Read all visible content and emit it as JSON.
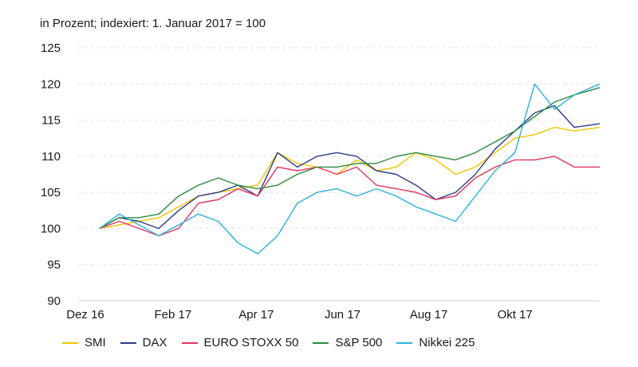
{
  "chart_data": {
    "type": "line",
    "subtitle": "in Prozent; indexiert: 1. Januar 2017 = 100",
    "ylim": [
      90,
      125
    ],
    "yticks": [
      90,
      95,
      100,
      105,
      110,
      115,
      120,
      125
    ],
    "xlim": [
      "2016-12-01",
      "2017-11-30"
    ],
    "xticks": [
      {
        "label": "Dez 16",
        "date": "2016-12-01"
      },
      {
        "label": "Feb 17",
        "date": "2017-02-01"
      },
      {
        "label": "Apr 17",
        "date": "2017-04-01"
      },
      {
        "label": "Jun 17",
        "date": "2017-06-01"
      },
      {
        "label": "Aug 17",
        "date": "2017-08-01"
      },
      {
        "label": "Okt 17",
        "date": "2017-10-01"
      }
    ],
    "grid": true,
    "legend_position": "bottom",
    "series": [
      {
        "name": "SMI",
        "color": "#f2c500",
        "x": [
          "2016-12-11",
          "2016-12-25",
          "2017-01-08",
          "2017-01-22",
          "2017-02-05",
          "2017-02-19",
          "2017-03-05",
          "2017-03-19",
          "2017-04-02",
          "2017-04-16",
          "2017-04-30",
          "2017-05-14",
          "2017-05-28",
          "2017-06-11",
          "2017-06-25",
          "2017-07-09",
          "2017-07-23",
          "2017-08-06",
          "2017-08-20",
          "2017-09-03",
          "2017-09-17",
          "2017-10-01",
          "2017-10-15",
          "2017-10-29",
          "2017-11-12",
          "2017-11-30"
        ],
        "values": [
          100,
          100.5,
          101,
          101.5,
          103,
          104.5,
          105,
          105.5,
          106,
          110.5,
          109,
          108.5,
          107.5,
          109.5,
          108,
          108.5,
          110.5,
          109.5,
          107.5,
          108.5,
          110.5,
          112.5,
          113,
          114,
          113.5,
          114
        ]
      },
      {
        "name": "DAX",
        "color": "#2d3b8c",
        "x": [
          "2016-12-11",
          "2016-12-25",
          "2017-01-08",
          "2017-01-22",
          "2017-02-05",
          "2017-02-19",
          "2017-03-05",
          "2017-03-19",
          "2017-04-02",
          "2017-04-16",
          "2017-04-30",
          "2017-05-14",
          "2017-05-28",
          "2017-06-11",
          "2017-06-25",
          "2017-07-09",
          "2017-07-23",
          "2017-08-06",
          "2017-08-20",
          "2017-09-03",
          "2017-09-17",
          "2017-10-01",
          "2017-10-15",
          "2017-10-29",
          "2017-11-12",
          "2017-11-30"
        ],
        "values": [
          100,
          101.5,
          101,
          100,
          102.5,
          104.5,
          105,
          106,
          104.5,
          110.5,
          108.5,
          110,
          110.5,
          110,
          108,
          107.5,
          106,
          104,
          105,
          107.5,
          111,
          113.5,
          116,
          117,
          114,
          114.5
        ]
      },
      {
        "name": "EURO STOXX 50",
        "color": "#e2335f",
        "x": [
          "2016-12-11",
          "2016-12-25",
          "2017-01-08",
          "2017-01-22",
          "2017-02-05",
          "2017-02-19",
          "2017-03-05",
          "2017-03-19",
          "2017-04-02",
          "2017-04-16",
          "2017-04-30",
          "2017-05-14",
          "2017-05-28",
          "2017-06-11",
          "2017-06-25",
          "2017-07-09",
          "2017-07-23",
          "2017-08-06",
          "2017-08-20",
          "2017-09-03",
          "2017-09-17",
          "2017-10-01",
          "2017-10-15",
          "2017-10-29",
          "2017-11-12",
          "2017-11-30"
        ],
        "values": [
          100,
          101,
          100,
          99,
          100,
          103.5,
          104,
          105.5,
          104.5,
          108.5,
          108,
          108.5,
          107.5,
          108.5,
          106,
          105.5,
          105,
          104,
          104.5,
          107,
          108.5,
          109.5,
          109.5,
          110,
          108.5,
          108.5
        ]
      },
      {
        "name": "S&P 500",
        "color": "#2e8b3e",
        "x": [
          "2016-12-11",
          "2016-12-25",
          "2017-01-08",
          "2017-01-22",
          "2017-02-05",
          "2017-02-19",
          "2017-03-05",
          "2017-03-19",
          "2017-04-02",
          "2017-04-16",
          "2017-04-30",
          "2017-05-14",
          "2017-05-28",
          "2017-06-11",
          "2017-06-25",
          "2017-07-09",
          "2017-07-23",
          "2017-08-06",
          "2017-08-20",
          "2017-09-03",
          "2017-09-17",
          "2017-10-01",
          "2017-10-15",
          "2017-10-29",
          "2017-11-12",
          "2017-11-30"
        ],
        "values": [
          100,
          101.5,
          101.5,
          102,
          104.5,
          106,
          107,
          106,
          105.5,
          106,
          107.5,
          108.5,
          108.5,
          109,
          109,
          110,
          110.5,
          110,
          109.5,
          110.5,
          112,
          113.5,
          115.5,
          117.5,
          118.5,
          119.5
        ]
      },
      {
        "name": "Nikkei 225",
        "color": "#2cb1de",
        "x": [
          "2016-12-11",
          "2016-12-25",
          "2017-01-08",
          "2017-01-22",
          "2017-02-05",
          "2017-02-19",
          "2017-03-05",
          "2017-03-19",
          "2017-04-02",
          "2017-04-16",
          "2017-04-30",
          "2017-05-14",
          "2017-05-28",
          "2017-06-11",
          "2017-06-25",
          "2017-07-09",
          "2017-07-23",
          "2017-08-06",
          "2017-08-20",
          "2017-09-03",
          "2017-09-17",
          "2017-10-01",
          "2017-10-15",
          "2017-10-29",
          "2017-11-12",
          "2017-11-30"
        ],
        "values": [
          100,
          102,
          100.5,
          99,
          100.5,
          102,
          101,
          98,
          96.5,
          99,
          103.5,
          105,
          105.5,
          104.5,
          105.5,
          104.5,
          103,
          102,
          101,
          104.5,
          108,
          110.5,
          120,
          116.5,
          118.5,
          120
        ]
      }
    ]
  }
}
